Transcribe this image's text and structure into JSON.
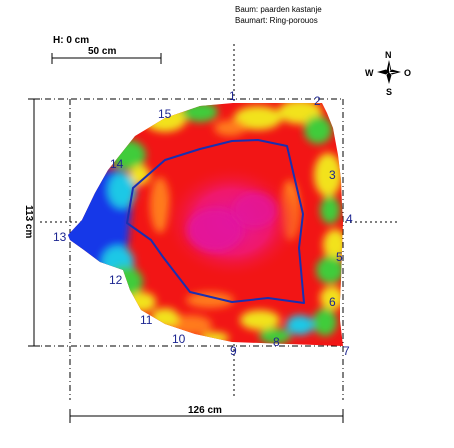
{
  "header": {
    "tree_line": "Baum: paarden kastanje",
    "wood_line": "Baumart: Ring-porouos"
  },
  "height_label": "H: 0 cm",
  "scale_bar_label": "50 cm",
  "width_dimension": "126 cm",
  "height_dimension": "113 cm",
  "compass": {
    "north": "N",
    "south": "S",
    "east": "O",
    "west": "W"
  },
  "measurement_points": [
    "1",
    "2",
    "3",
    "4",
    "5",
    "6",
    "7",
    "8",
    "9",
    "10",
    "11",
    "12",
    "13",
    "14",
    "15"
  ],
  "colors": {
    "outline": "#1a2fb0",
    "core_magenta": "#e2199f",
    "hot_red": "#f21515",
    "warm_orange": "#ff7a1a",
    "yellow": "#f2e21c",
    "green": "#3fcc3a",
    "cyan": "#1fc8e6",
    "blue": "#1537e8",
    "label_blue": "#1c2590"
  }
}
